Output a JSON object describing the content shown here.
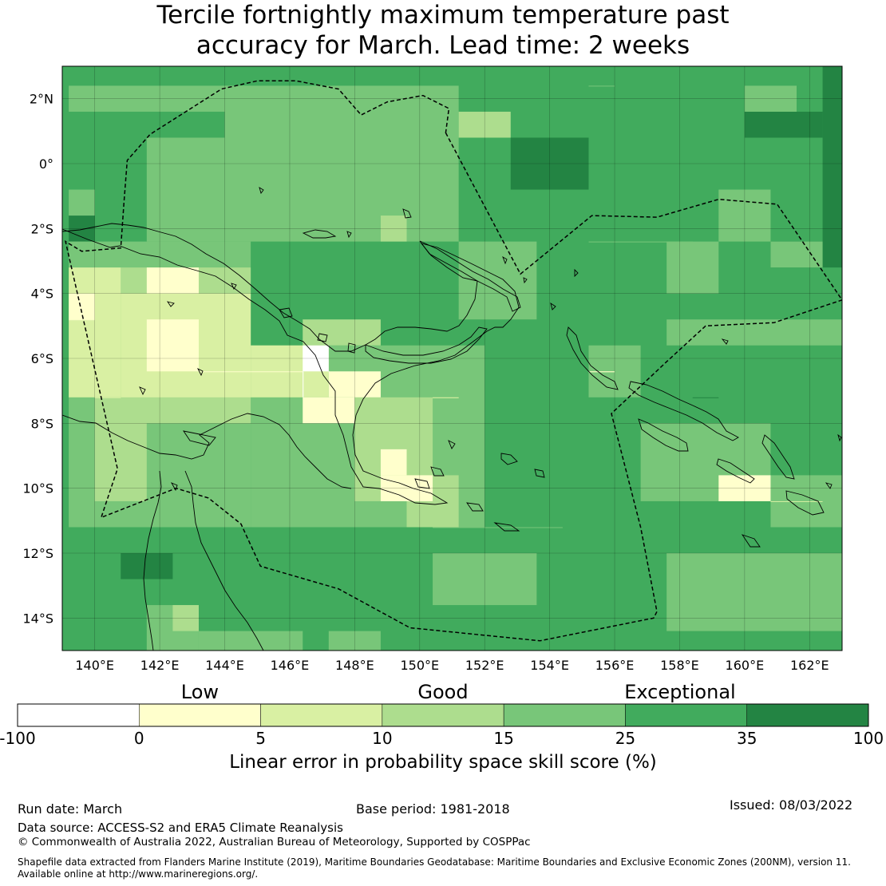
{
  "title_line1": "Tercile fortnightly maximum temperature past",
  "title_line2": "accuracy for March. Lead time: 2 weeks",
  "map": {
    "lon_range": [
      139,
      163
    ],
    "lat_range": [
      -15,
      3
    ],
    "lon_ticks": [
      140,
      142,
      144,
      146,
      148,
      150,
      152,
      154,
      156,
      158,
      160,
      162
    ],
    "lon_tick_labels": [
      "140°E",
      "142°E",
      "144°E",
      "146°E",
      "148°E",
      "150°E",
      "152°E",
      "154°E",
      "156°E",
      "158°E",
      "160°E",
      "162°E"
    ],
    "lat_ticks": [
      2,
      0,
      -2,
      -4,
      -6,
      -8,
      -10,
      -12,
      -14
    ],
    "lat_tick_labels": [
      "2°N",
      "0°",
      "2°S",
      "4°S",
      "6°S",
      "8°S",
      "10°S",
      "12°S",
      "14°S"
    ],
    "grid": true,
    "eez_boundary": [
      [
        150.8,
        0.95
      ],
      [
        153.1,
        -3.4
      ],
      [
        155.3,
        -1.6
      ],
      [
        157.3,
        -1.65
      ],
      [
        159.2,
        -1.1
      ],
      [
        161.0,
        -1.25
      ],
      [
        163.0,
        -4.2
      ],
      [
        160.9,
        -4.9
      ],
      [
        158.8,
        -5.0
      ],
      [
        157.6,
        -6.1
      ],
      [
        155.9,
        -7.7
      ],
      [
        156.8,
        -11.2
      ],
      [
        157.3,
        -13.8
      ],
      [
        157.2,
        -14.0
      ],
      [
        153.7,
        -14.7
      ],
      [
        149.7,
        -14.3
      ],
      [
        147.5,
        -13.1
      ],
      [
        145.1,
        -12.4
      ],
      [
        144.5,
        -11.1
      ],
      [
        143.5,
        -10.3
      ],
      [
        142.5,
        -10.0
      ],
      [
        140.2,
        -10.9
      ],
      [
        140.7,
        -9.4
      ],
      [
        139.1,
        -2.4
      ],
      [
        139.6,
        -2.7
      ],
      [
        140.8,
        -2.6
      ],
      [
        140.9,
        -1.2
      ],
      [
        141.0,
        0.1
      ],
      [
        141.7,
        0.9
      ],
      [
        143.9,
        2.3
      ],
      [
        145.0,
        2.55
      ],
      [
        146.2,
        2.55
      ],
      [
        147.5,
        2.3
      ],
      [
        148.2,
        1.5
      ],
      [
        149.0,
        1.9
      ],
      [
        150.1,
        2.1
      ],
      [
        150.9,
        1.7
      ]
    ]
  },
  "chart_data": {
    "type": "heatmap",
    "title": "Tercile fortnightly maximum temperature past accuracy for March. Lead time: 2 weeks",
    "xlabel": "",
    "ylabel": "",
    "x_range": [
      139,
      163
    ],
    "y_range": [
      -15,
      3
    ],
    "grid_spacing_deg": 0.8,
    "value_units": "%",
    "background_value_range": [
      25,
      35
    ],
    "regions": [
      {
        "lon": [
          162,
          163
        ],
        "lat": [
          -3,
          3
        ],
        "range": [
          35,
          100
        ]
      },
      {
        "lon": [
          160,
          162
        ],
        "lat": [
          0.5,
          1.5
        ],
        "range": [
          35,
          100
        ]
      },
      {
        "lon": [
          153.2,
          155.6
        ],
        "lat": [
          -0.6,
          0.5
        ],
        "range": [
          35,
          100
        ]
      },
      {
        "lon": [
          160.4,
          162
        ],
        "lat": [
          -3,
          -2.4
        ],
        "range": [
          35,
          100
        ]
      },
      {
        "lon": [
          158.4,
          159.6
        ],
        "lat": [
          -7.6,
          -7.1
        ],
        "range": [
          35,
          100
        ]
      },
      {
        "lon": [
          141.2,
          142
        ],
        "lat": [
          -12.8,
          -12.2
        ],
        "range": [
          35,
          100
        ]
      },
      {
        "lon": [
          139.2,
          140
        ],
        "lat": [
          -2.4,
          -1.8
        ],
        "range": [
          35,
          100
        ]
      },
      {
        "lon": [
          144,
          151
        ],
        "lat": [
          -2.2,
          2.8
        ],
        "range": [
          15,
          25
        ]
      },
      {
        "lon": [
          139,
          145
        ],
        "lat": [
          1.4,
          2.8
        ],
        "range": [
          15,
          25
        ]
      },
      {
        "lon": [
          141.8,
          144
        ],
        "lat": [
          -2.2,
          0.4
        ],
        "range": [
          15,
          25
        ]
      },
      {
        "lon": [
          151,
          153.6
        ],
        "lat": [
          -4.8,
          -2.8
        ],
        "range": [
          15,
          25
        ]
      },
      {
        "lon": [
          139,
          145
        ],
        "lat": [
          -11,
          -2.4
        ],
        "range": [
          15,
          25
        ]
      },
      {
        "lon": [
          145,
          152.2
        ],
        "lat": [
          -11.2,
          -5.6
        ],
        "range": [
          15,
          25
        ]
      },
      {
        "lon": [
          150,
          154
        ],
        "lat": [
          -11.6,
          -11
        ],
        "range": [
          15,
          25
        ]
      },
      {
        "lon": [
          150,
          153.6
        ],
        "lat": [
          -13.6,
          -12.2
        ],
        "range": [
          15,
          25
        ]
      },
      {
        "lon": [
          141.6,
          143.4
        ],
        "lat": [
          -15,
          -13.4
        ],
        "range": [
          15,
          25
        ]
      },
      {
        "lon": [
          143.6,
          146
        ],
        "lat": [
          -15,
          -14.2
        ],
        "range": [
          15,
          25
        ]
      },
      {
        "lon": [
          147.4,
          148.4
        ],
        "lat": [
          -15,
          -14.2
        ],
        "range": [
          15,
          25
        ]
      },
      {
        "lon": [
          154.8,
          156.6
        ],
        "lat": [
          -7,
          -5.6
        ],
        "range": [
          15,
          25
        ]
      },
      {
        "lon": [
          157.2,
          160.4
        ],
        "lat": [
          -10.4,
          -8.2
        ],
        "range": [
          15,
          25
        ]
      },
      {
        "lon": [
          160.4,
          163
        ],
        "lat": [
          -11.6,
          -10
        ],
        "range": [
          15,
          25
        ]
      },
      {
        "lon": [
          157.4,
          163
        ],
        "lat": [
          -14.4,
          -12.2
        ],
        "range": [
          15,
          25
        ]
      },
      {
        "lon": [
          157.6,
          163
        ],
        "lat": [
          -5.6,
          -4.8
        ],
        "range": [
          15,
          25
        ]
      },
      {
        "lon": [
          154.8,
          158.4
        ],
        "lat": [
          -2.8,
          -2.2
        ],
        "range": [
          15,
          25
        ]
      },
      {
        "lon": [
          157.6,
          159
        ],
        "lat": [
          -4,
          -2.2
        ],
        "range": [
          15,
          25
        ]
      },
      {
        "lon": [
          160.4,
          162.2
        ],
        "lat": [
          -3,
          -2.4
        ],
        "range": [
          15,
          25
        ]
      },
      {
        "lon": [
          159,
          160.4
        ],
        "lat": [
          -2.8,
          -1.2
        ],
        "range": [
          15,
          25
        ]
      },
      {
        "lon": [
          160.2,
          161.8
        ],
        "lat": [
          1.8,
          2.6
        ],
        "range": [
          15,
          25
        ]
      },
      {
        "lon": [
          155.2,
          156
        ],
        "lat": [
          2,
          2.7
        ],
        "range": [
          15,
          25
        ]
      },
      {
        "lon": [
          139,
          139.8
        ],
        "lat": [
          -1.4,
          -0.6
        ],
        "range": [
          15,
          25
        ]
      },
      {
        "lon": [
          139.8,
          141.8
        ],
        "lat": [
          -10.4,
          -7.6
        ],
        "range": [
          10,
          15
        ]
      },
      {
        "lon": [
          141,
          145
        ],
        "lat": [
          -8,
          -3.2
        ],
        "range": [
          10,
          15
        ]
      },
      {
        "lon": [
          146,
          148.6
        ],
        "lat": [
          -6,
          -4.8
        ],
        "range": [
          10,
          15
        ]
      },
      {
        "lon": [
          148.4,
          149.6
        ],
        "lat": [
          -2.4,
          -1.8
        ],
        "range": [
          10,
          15
        ]
      },
      {
        "lon": [
          148,
          150
        ],
        "lat": [
          -10.4,
          -7.2
        ],
        "range": [
          10,
          15
        ]
      },
      {
        "lon": [
          149.8,
          151
        ],
        "lat": [
          -11,
          -10
        ],
        "range": [
          10,
          15
        ]
      },
      {
        "lon": [
          142,
          142.8
        ],
        "lat": [
          -14.2,
          -13.6
        ],
        "range": [
          10,
          15
        ]
      },
      {
        "lon": [
          151.6,
          152.4
        ],
        "lat": [
          1.1,
          1.5
        ],
        "range": [
          10,
          15
        ]
      },
      {
        "lon": [
          150,
          151
        ],
        "lat": [
          -7.6,
          -7.2
        ],
        "range": [
          10,
          15
        ]
      },
      {
        "lon": [
          139,
          141.2
        ],
        "lat": [
          -7.2,
          -3.2
        ],
        "range": [
          5,
          10
        ]
      },
      {
        "lon": [
          141.2,
          145
        ],
        "lat": [
          -7.2,
          -4.2
        ],
        "range": [
          5,
          10
        ]
      },
      {
        "lon": [
          145,
          147.6
        ],
        "lat": [
          -7.2,
          -5.8
        ],
        "range": [
          5,
          10
        ]
      },
      {
        "lon": [
          150,
          150.8
        ],
        "lat": [
          -7.6,
          -7
        ],
        "range": [
          5,
          10
        ]
      },
      {
        "lon": [
          155.4,
          156
        ],
        "lat": [
          -6.8,
          -6.2
        ],
        "range": [
          5,
          10
        ]
      },
      {
        "lon": [
          160.8,
          162.4
        ],
        "lat": [
          -10.8,
          -10.2
        ],
        "range": [
          5,
          10
        ]
      },
      {
        "lon": [
          140,
          140.8
        ],
        "lat": [
          -7.6,
          -7.2
        ],
        "range": [
          5,
          10
        ]
      },
      {
        "lon": [
          141.8,
          143.2
        ],
        "lat": [
          -4,
          -3.4
        ],
        "range": [
          0,
          5
        ]
      },
      {
        "lon": [
          141.8,
          143.2
        ],
        "lat": [
          -6.2,
          -4.6
        ],
        "range": [
          0,
          5
        ]
      },
      {
        "lon": [
          139,
          140
        ],
        "lat": [
          -5.2,
          -4.8
        ],
        "range": [
          0,
          5
        ]
      },
      {
        "lon": [
          139,
          139.8
        ],
        "lat": [
          -4.6,
          -4.2
        ],
        "range": [
          0,
          5
        ]
      },
      {
        "lon": [
          143.4,
          144.4
        ],
        "lat": [
          -6.8,
          -6.4
        ],
        "range": [
          0,
          5
        ]
      },
      {
        "lon": [
          145.2,
          146.2
        ],
        "lat": [
          -6.8,
          -6.4
        ],
        "range": [
          0,
          5
        ]
      },
      {
        "lon": [
          146.6,
          148.2
        ],
        "lat": [
          -8.4,
          -7.2
        ],
        "range": [
          0,
          5
        ]
      },
      {
        "lon": [
          147.6,
          148.4
        ],
        "lat": [
          -7.2,
          -6.4
        ],
        "range": [
          0,
          5
        ]
      },
      {
        "lon": [
          148.4,
          149.8
        ],
        "lat": [
          -9.6,
          -8.8
        ],
        "range": [
          0,
          5
        ]
      },
      {
        "lon": [
          148.8,
          150
        ],
        "lat": [
          -10.2,
          -9.6
        ],
        "range": [
          0,
          5
        ]
      },
      {
        "lon": [
          155.4,
          156
        ],
        "lat": [
          -6.6,
          -6.2
        ],
        "range": [
          0,
          5
        ]
      },
      {
        "lon": [
          159.6,
          160.8
        ],
        "lat": [
          -10.2,
          -9.8
        ],
        "range": [
          0,
          5
        ]
      },
      {
        "lon": [
          146,
          146.8
        ],
        "lat": [
          -6.2,
          -5.6
        ],
        "range": [
          -100,
          0
        ]
      },
      {
        "lon": [
          146.8,
          147.6
        ],
        "lat": [
          -6.8,
          -6.2
        ],
        "range": [
          -100,
          0
        ]
      },
      {
        "lon": [
          146,
          146.6
        ],
        "lat": [
          -7.4,
          -6.8
        ],
        "range": [
          -100,
          0
        ]
      }
    ]
  },
  "colorbar": {
    "headings": [
      {
        "label": "Low",
        "at": 1.5
      },
      {
        "label": "Good",
        "at": 3.5
      },
      {
        "label": "Exceptional",
        "at": 5.45
      }
    ],
    "bins": [
      {
        "range": [
          -100,
          0
        ],
        "color": "#ffffff"
      },
      {
        "range": [
          0,
          5
        ],
        "color": "#ffffcc"
      },
      {
        "range": [
          5,
          10
        ],
        "color": "#d9f0a3"
      },
      {
        "range": [
          10,
          15
        ],
        "color": "#addd8e"
      },
      {
        "range": [
          15,
          25
        ],
        "color": "#78c679"
      },
      {
        "range": [
          25,
          35
        ],
        "color": "#41ab5d"
      },
      {
        "range": [
          35,
          100
        ],
        "color": "#238443"
      }
    ],
    "ticks": [
      "-100",
      "0",
      "5",
      "10",
      "15",
      "25",
      "35",
      "100"
    ],
    "label": "Linear error in probability space skill score (%)"
  },
  "footer": {
    "run_date": "Run date: March",
    "base_period": "Base period: 1981-2018",
    "issued": "Issued: 08/03/2022",
    "data_source": "Data source: ACCESS-S2 and ERA5 Climate Reanalysis",
    "copyright": "© Commonwealth of Australia 2022, Australian Bureau of Meteorology, Supported by COSPPac",
    "shapefile_line1": "Shapefile data extracted from Flanders Marine Institute (2019), Maritime Boundaries Geodatabase: Maritime Boundaries and Exclusive Economic Zones (200NM), version 11.",
    "shapefile_line2": "Available online at http://www.marineregions.org/."
  }
}
